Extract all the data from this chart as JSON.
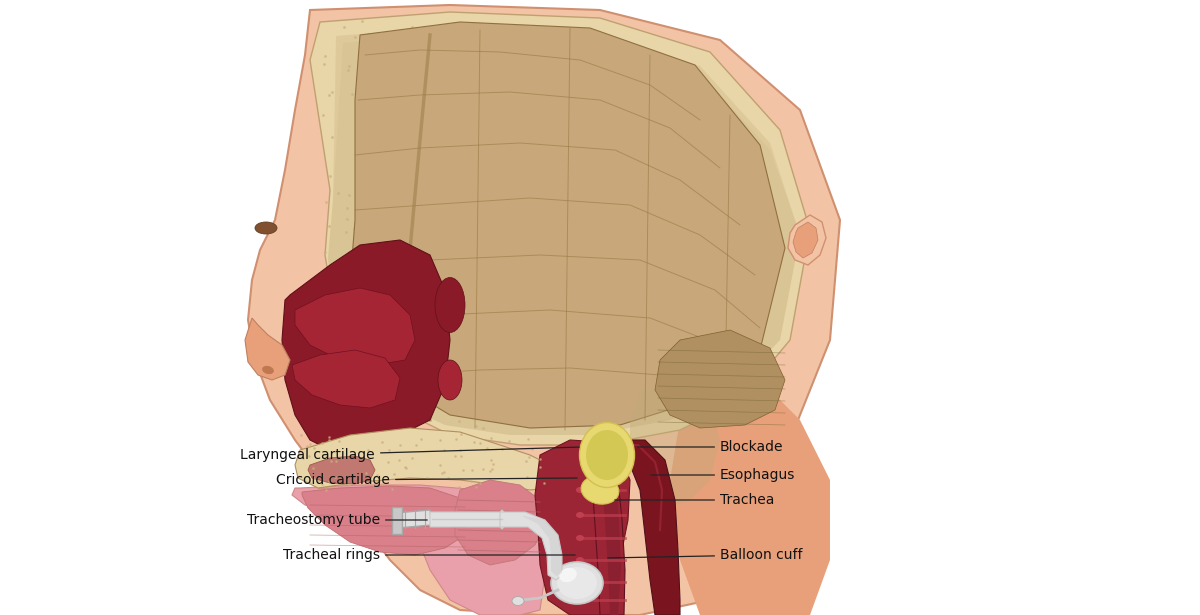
{
  "background_color": "#ffffff",
  "fig_width": 12.0,
  "fig_height": 6.15,
  "dpi": 100,
  "labels": {
    "laryngeal_cartilage": "Laryngeal cartilage",
    "cricoid_cartilage": "Cricoid cartilage",
    "tracheostomy_tube": "Tracheostomy tube",
    "tracheal_rings": "Tracheal rings",
    "blockade": "Blockade",
    "esophagus": "Esophagus",
    "trachea": "Trachea",
    "balloon_cuff": "Balloon cuff"
  },
  "skin_color": "#EDAB88",
  "skin_light": "#F2C4A5",
  "skin_medium": "#E8A07A",
  "skull_color": "#E8D5A8",
  "skull_speckle": "#C8B080",
  "brain_color": "#C8A87A",
  "brain_dark": "#9A7845",
  "brain_shadow": "#B09060",
  "nasal_dark": "#8B1A28",
  "nasal_mid": "#A52535",
  "oral_pink": "#D9808A",
  "oral_light": "#EAA0AA",
  "throat_pink": "#E8A0A8",
  "trachea_dark": "#7A1520",
  "trachea_mid": "#9B2535",
  "tube_light": "#E0E0E0",
  "tube_mid": "#C8C8C8",
  "tube_dark": "#A8A8A8",
  "cartilage_yellow": "#D4C050",
  "cartilage_light": "#E8D870"
}
